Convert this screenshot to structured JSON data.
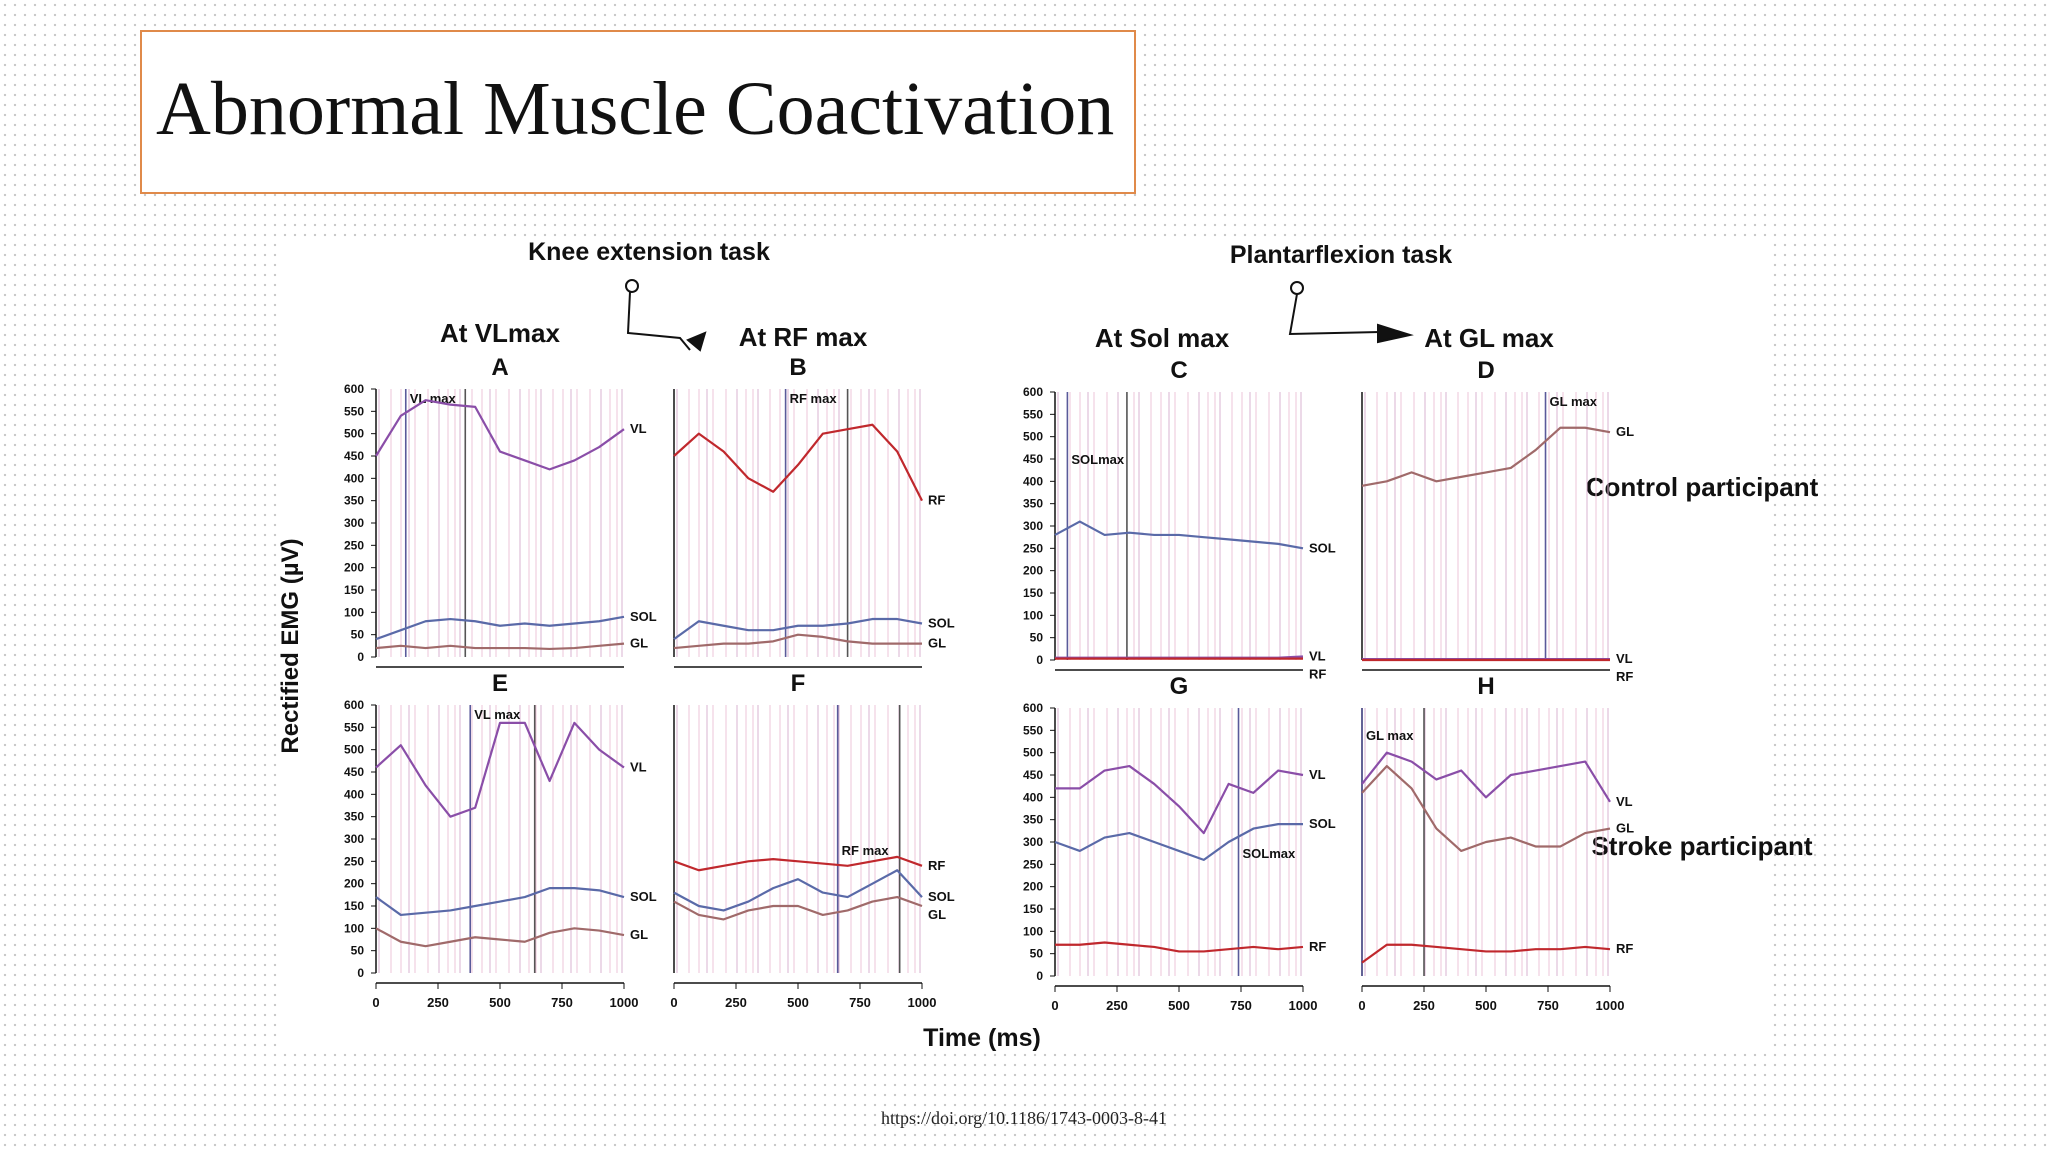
{
  "slide_title": "Abnormal Muscle Coactivation",
  "figure": {
    "knee_task": "Knee extension task",
    "plantar_task": "Plantarflexion task",
    "col_headers": [
      "At VLmax",
      "At RF max",
      "At Sol max",
      "At GL max"
    ],
    "row_labels": [
      "Control participant",
      "Stroke participant"
    ],
    "y_label": "Rectified EMG (µV)",
    "x_label": "Time (ms)"
  },
  "doi": "https://doi.org/10.1186/1743-0003-8-41",
  "chart_data": [
    {
      "type": "line",
      "title": "A",
      "x": [
        0,
        100,
        200,
        300,
        400,
        500,
        600,
        700,
        800,
        900,
        1000
      ],
      "xlim": [
        0,
        1000
      ],
      "ylim": [
        0,
        600
      ],
      "yticks": [
        0,
        50,
        100,
        150,
        200,
        250,
        300,
        350,
        400,
        450,
        500,
        550,
        600
      ],
      "max_label": "VL max",
      "max_lines": [
        120,
        360
      ],
      "series": [
        {
          "name": "VL",
          "color": "#8a4ea8",
          "values": [
            450,
            540,
            575,
            565,
            560,
            460,
            440,
            420,
            440,
            470,
            510
          ]
        },
        {
          "name": "SOL",
          "color": "#5a6aa8",
          "values": [
            40,
            60,
            80,
            85,
            80,
            70,
            75,
            70,
            75,
            80,
            90
          ]
        },
        {
          "name": "GL",
          "color": "#a06a6a",
          "values": [
            20,
            25,
            20,
            25,
            20,
            20,
            20,
            18,
            20,
            25,
            30
          ]
        }
      ]
    },
    {
      "type": "line",
      "title": "B",
      "x": [
        0,
        100,
        200,
        300,
        400,
        500,
        600,
        700,
        800,
        900,
        1000
      ],
      "xlim": [
        0,
        1000
      ],
      "ylim": [
        0,
        600
      ],
      "max_label": "RF max",
      "max_lines": [
        450,
        700
      ],
      "series": [
        {
          "name": "RF",
          "color": "#c0282d",
          "values": [
            450,
            500,
            460,
            400,
            370,
            430,
            500,
            510,
            520,
            460,
            350
          ]
        },
        {
          "name": "SOL",
          "color": "#5a6aa8",
          "values": [
            40,
            80,
            70,
            60,
            60,
            70,
            70,
            75,
            85,
            85,
            75
          ]
        },
        {
          "name": "GL",
          "color": "#a06a6a",
          "values": [
            20,
            25,
            30,
            30,
            35,
            50,
            45,
            35,
            30,
            30,
            30
          ]
        }
      ]
    },
    {
      "type": "line",
      "title": "C",
      "x": [
        0,
        100,
        200,
        300,
        400,
        500,
        600,
        700,
        800,
        900,
        1000
      ],
      "xlim": [
        0,
        1000
      ],
      "ylim": [
        0,
        600
      ],
      "yticks": [
        0,
        50,
        100,
        150,
        200,
        250,
        300,
        350,
        400,
        450,
        500,
        550,
        600
      ],
      "max_label": "SOLmax",
      "max_lines": [
        50,
        290
      ],
      "series": [
        {
          "name": "SOL",
          "color": "#5a6aa8",
          "values": [
            280,
            310,
            280,
            285,
            280,
            280,
            275,
            270,
            265,
            260,
            250
          ]
        },
        {
          "name": "VL",
          "color": "#8a4ea8",
          "values": [
            5,
            5,
            5,
            5,
            5,
            5,
            5,
            5,
            5,
            5,
            8
          ]
        },
        {
          "name": "RF",
          "color": "#c0282d",
          "values": [
            3,
            3,
            3,
            3,
            3,
            3,
            3,
            3,
            3,
            3,
            3
          ]
        }
      ]
    },
    {
      "type": "line",
      "title": "D",
      "x": [
        0,
        100,
        200,
        300,
        400,
        500,
        600,
        700,
        800,
        900,
        1000
      ],
      "xlim": [
        0,
        1000
      ],
      "ylim": [
        0,
        600
      ],
      "max_label": "GL max",
      "max_lines": [
        740
      ],
      "series": [
        {
          "name": "GL",
          "color": "#a06a6a",
          "values": [
            390,
            400,
            420,
            400,
            410,
            420,
            430,
            470,
            520,
            520,
            510
          ]
        },
        {
          "name": "VL",
          "color": "#8a4ea8",
          "values": [
            2,
            2,
            2,
            2,
            2,
            2,
            2,
            2,
            2,
            2,
            2
          ]
        },
        {
          "name": "RF",
          "color": "#c0282d",
          "values": [
            0,
            0,
            0,
            0,
            0,
            0,
            0,
            0,
            0,
            0,
            0
          ]
        }
      ]
    },
    {
      "type": "line",
      "title": "E",
      "x": [
        0,
        100,
        200,
        300,
        400,
        500,
        600,
        700,
        800,
        900,
        1000
      ],
      "xlim": [
        0,
        1000
      ],
      "xticks": [
        0,
        250,
        500,
        750,
        1000
      ],
      "ylim": [
        0,
        600
      ],
      "yticks": [
        0,
        50,
        100,
        150,
        200,
        250,
        300,
        350,
        400,
        450,
        500,
        550,
        600
      ],
      "max_label": "VL max",
      "max_lines": [
        380,
        640
      ],
      "series": [
        {
          "name": "VL",
          "color": "#8a4ea8",
          "values": [
            460,
            510,
            420,
            350,
            370,
            560,
            560,
            430,
            560,
            500,
            460
          ]
        },
        {
          "name": "SOL",
          "color": "#5a6aa8",
          "values": [
            170,
            130,
            135,
            140,
            150,
            160,
            170,
            190,
            190,
            185,
            170
          ]
        },
        {
          "name": "GL",
          "color": "#a06a6a",
          "values": [
            100,
            70,
            60,
            70,
            80,
            75,
            70,
            90,
            100,
            95,
            85
          ]
        }
      ]
    },
    {
      "type": "line",
      "title": "F",
      "x": [
        0,
        100,
        200,
        300,
        400,
        500,
        600,
        700,
        800,
        900,
        1000
      ],
      "xlim": [
        0,
        1000
      ],
      "xticks": [
        0,
        250,
        500,
        750,
        1000
      ],
      "ylim": [
        0,
        600
      ],
      "max_label": "RF max",
      "max_lines": [
        660,
        910
      ],
      "series": [
        {
          "name": "RF",
          "color": "#c0282d",
          "values": [
            250,
            230,
            240,
            250,
            255,
            250,
            245,
            240,
            250,
            260,
            240
          ]
        },
        {
          "name": "SOL",
          "color": "#5a6aa8",
          "values": [
            180,
            150,
            140,
            160,
            190,
            210,
            180,
            170,
            200,
            230,
            170
          ]
        },
        {
          "name": "GL",
          "color": "#a06a6a",
          "values": [
            160,
            130,
            120,
            140,
            150,
            150,
            130,
            140,
            160,
            170,
            150
          ]
        }
      ]
    },
    {
      "type": "line",
      "title": "G",
      "x": [
        0,
        100,
        200,
        300,
        400,
        500,
        600,
        700,
        800,
        900,
        1000
      ],
      "xlim": [
        0,
        1000
      ],
      "xticks": [
        0,
        250,
        500,
        750,
        1000
      ],
      "ylim": [
        0,
        600
      ],
      "yticks": [
        0,
        50,
        100,
        150,
        200,
        250,
        300,
        350,
        400,
        450,
        500,
        550,
        600
      ],
      "max_label": "SOLmax",
      "max_lines": [
        740
      ],
      "series": [
        {
          "name": "VL",
          "color": "#8a4ea8",
          "values": [
            420,
            420,
            460,
            470,
            430,
            380,
            320,
            430,
            410,
            460,
            450
          ]
        },
        {
          "name": "SOL",
          "color": "#5a6aa8",
          "values": [
            300,
            280,
            310,
            320,
            300,
            280,
            260,
            300,
            330,
            340,
            340
          ]
        },
        {
          "name": "RF",
          "color": "#c0282d",
          "values": [
            70,
            70,
            75,
            70,
            65,
            55,
            55,
            60,
            65,
            60,
            65
          ]
        }
      ]
    },
    {
      "type": "line",
      "title": "H",
      "x": [
        0,
        100,
        200,
        300,
        400,
        500,
        600,
        700,
        800,
        900,
        1000
      ],
      "xlim": [
        0,
        1000
      ],
      "xticks": [
        0,
        250,
        500,
        750,
        1000
      ],
      "ylim": [
        0,
        600
      ],
      "max_label": "GL max",
      "max_lines": [
        0,
        250
      ],
      "series": [
        {
          "name": "VL",
          "color": "#8a4ea8",
          "values": [
            430,
            500,
            480,
            440,
            460,
            400,
            450,
            460,
            470,
            480,
            390
          ]
        },
        {
          "name": "GL",
          "color": "#a06a6a",
          "values": [
            410,
            470,
            420,
            330,
            280,
            300,
            310,
            290,
            290,
            320,
            330
          ]
        },
        {
          "name": "RF",
          "color": "#c0282d",
          "values": [
            30,
            70,
            70,
            65,
            60,
            55,
            55,
            60,
            60,
            65,
            60
          ]
        }
      ]
    }
  ]
}
